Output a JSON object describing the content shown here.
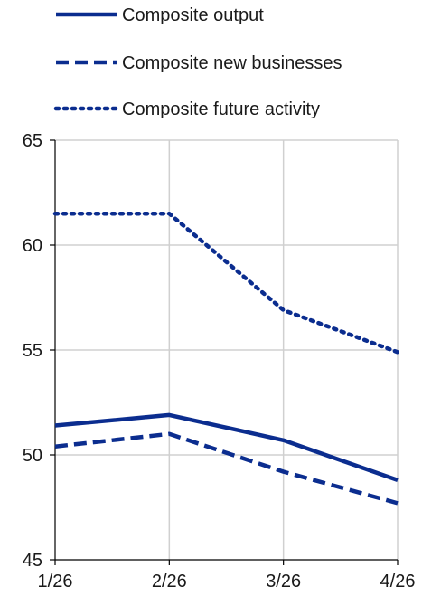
{
  "chart_data": {
    "type": "line",
    "categories": [
      "1/26",
      "2/26",
      "3/26",
      "4/26"
    ],
    "series": [
      {
        "name": "Composite output",
        "values": [
          51.4,
          51.9,
          50.7,
          48.8
        ],
        "style": "solid"
      },
      {
        "name": "Composite new businesses",
        "values": [
          50.4,
          51.0,
          49.2,
          47.7
        ],
        "style": "dashed"
      },
      {
        "name": "Composite future activity",
        "values": [
          61.5,
          61.5,
          56.9,
          54.9
        ],
        "style": "dotted"
      }
    ],
    "ylim": [
      45,
      65
    ],
    "yticks": [
      45,
      50,
      55,
      60,
      65
    ],
    "grid": true,
    "legend_position": "top",
    "title": "",
    "xlabel": "",
    "ylabel": "",
    "colors": {
      "series": "#0b2d8f",
      "grid": "#d0d0d0",
      "axis": "#000000"
    }
  }
}
